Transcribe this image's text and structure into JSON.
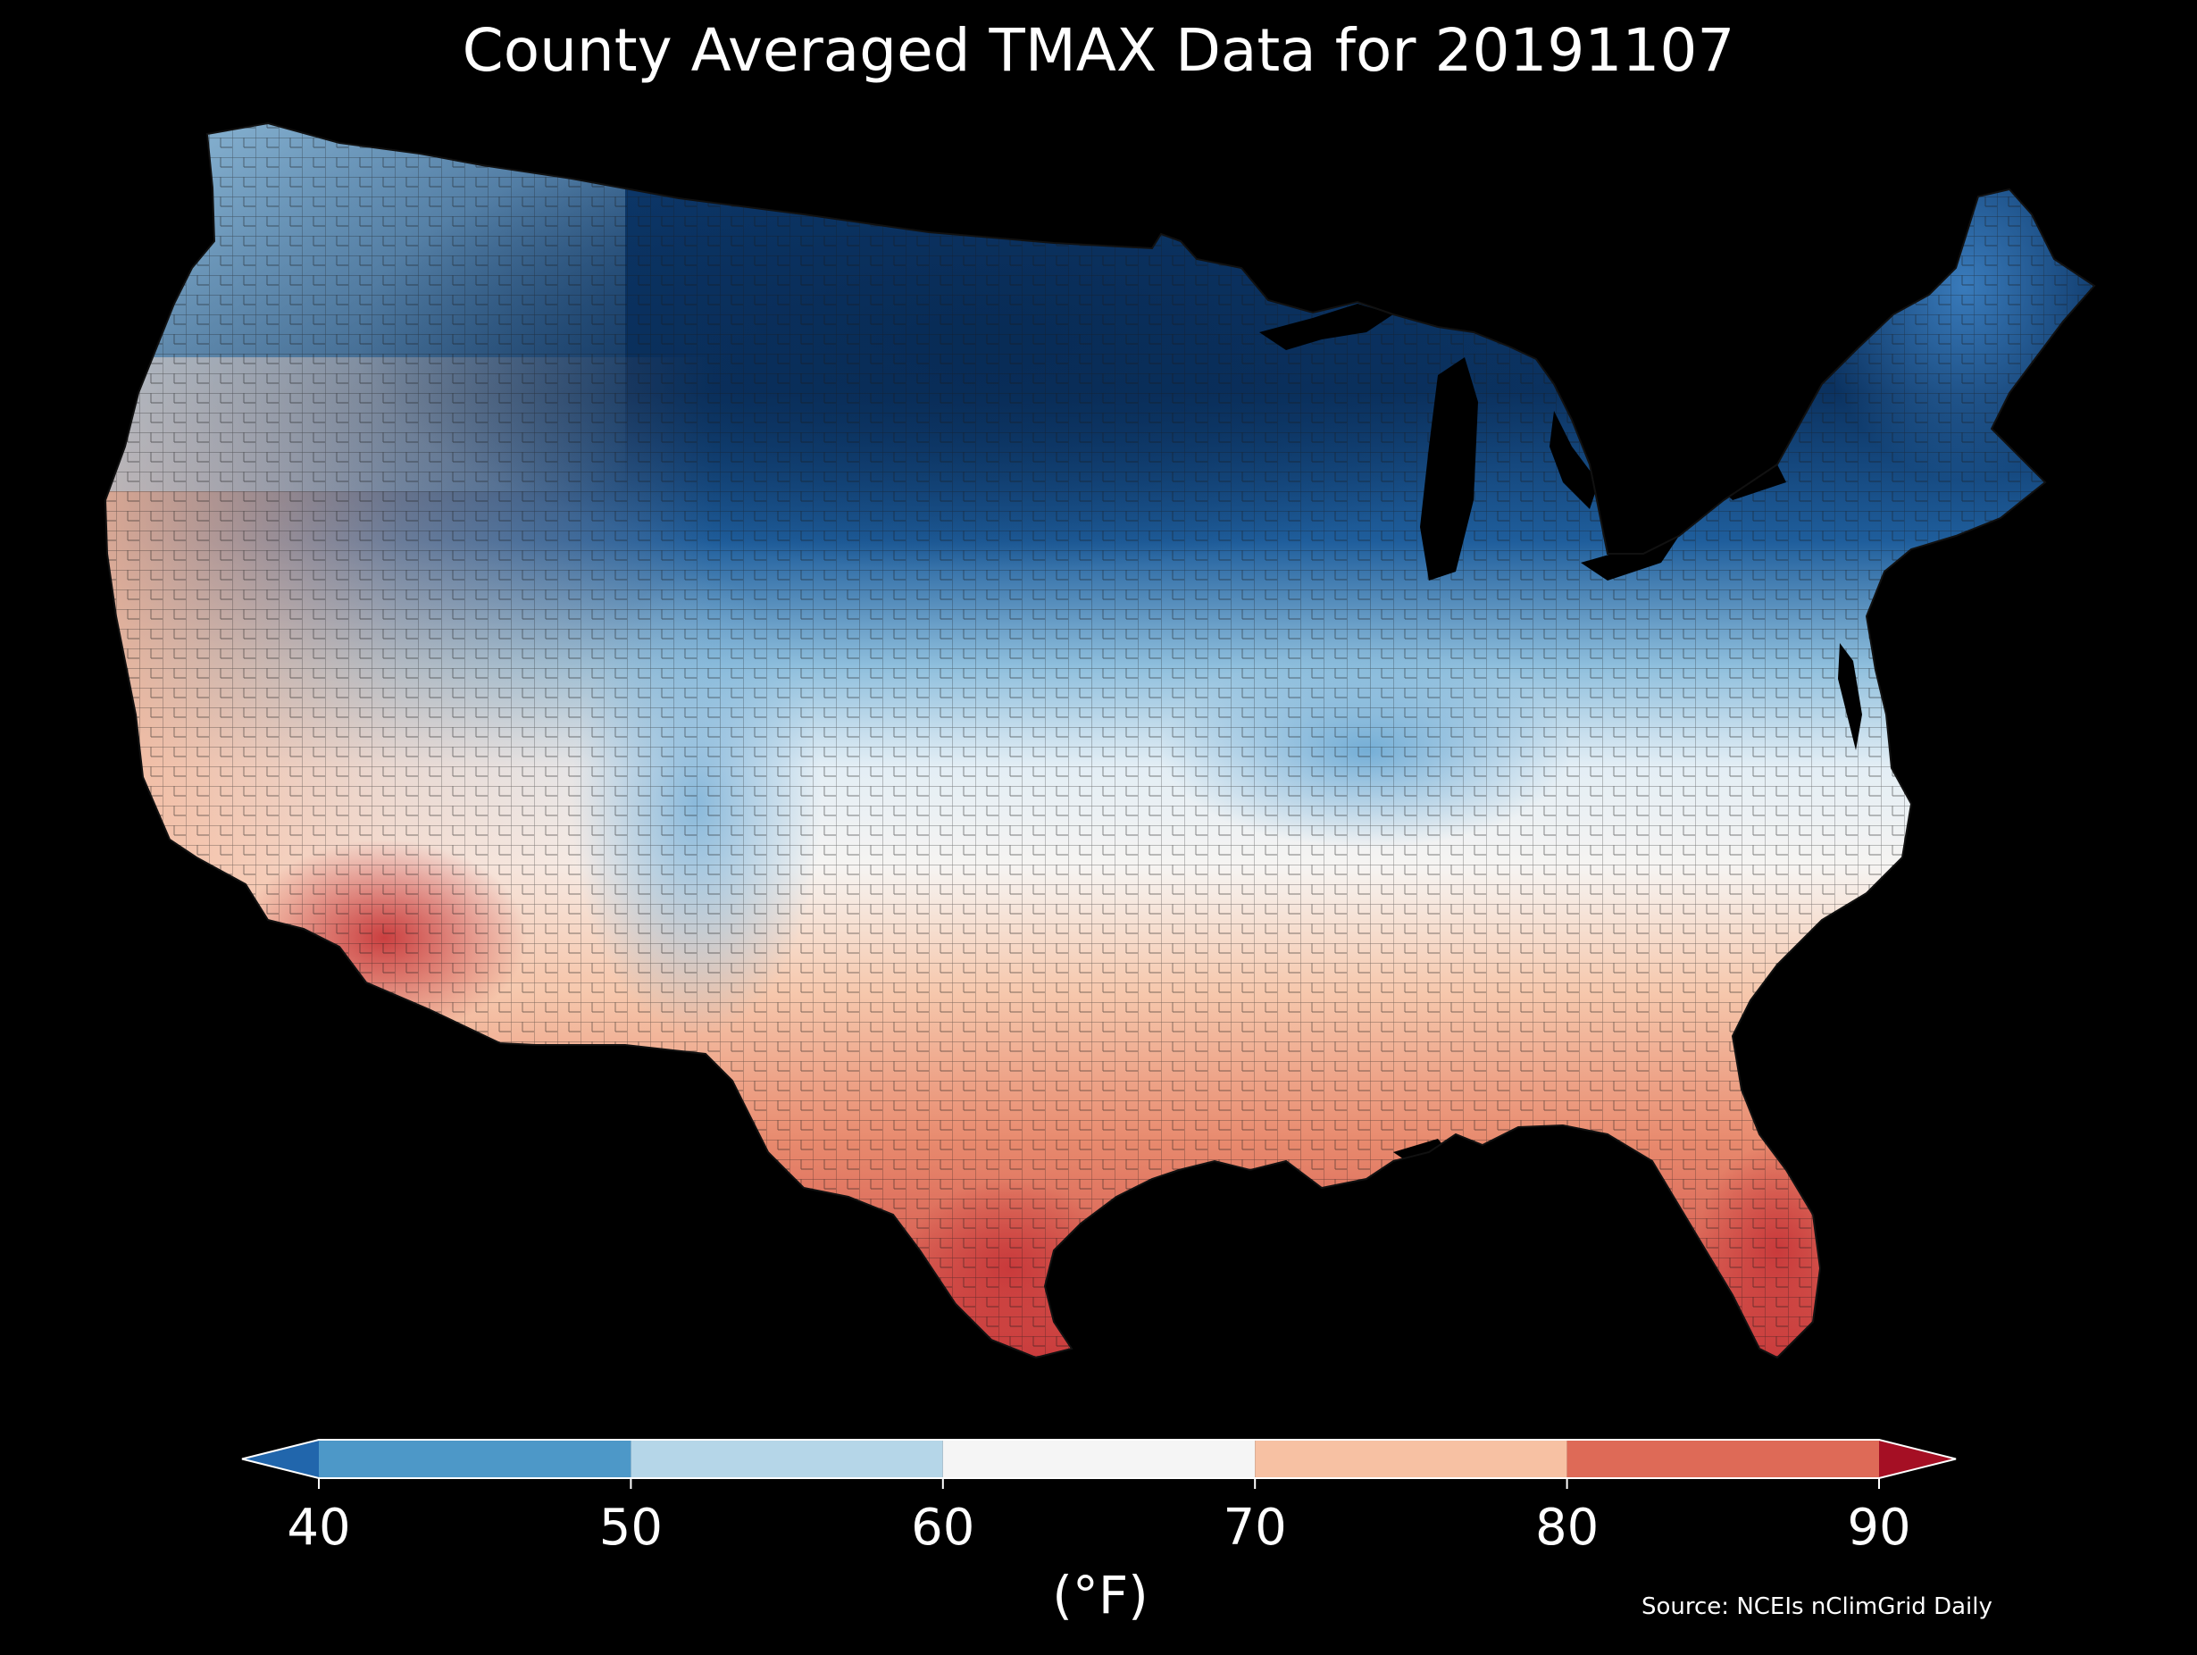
{
  "title": "County Averaged TMAX Data for 20191107",
  "colorbar": {
    "ticks": [
      "40",
      "50",
      "60",
      "70",
      "80",
      "90"
    ],
    "units": "(°F)",
    "bins": [
      {
        "range": [
          null,
          40
        ],
        "color": "#2166ac"
      },
      {
        "range": [
          40,
          50
        ],
        "color": "#4d98c8"
      },
      {
        "range": [
          50,
          60
        ],
        "color": "#b5d6e8"
      },
      {
        "range": [
          60,
          70
        ],
        "color": "#f5f5f5"
      },
      {
        "range": [
          70,
          80
        ],
        "color": "#f7c1a3"
      },
      {
        "range": [
          80,
          90
        ],
        "color": "#de6a57"
      },
      {
        "range": [
          90,
          null
        ],
        "color": "#a50f24"
      }
    ]
  },
  "source": "Source: NCEIs nClimGrid Daily",
  "colors": {
    "background": "#000000",
    "text": "#ffffff",
    "county_border": "#1a1a1a"
  }
}
